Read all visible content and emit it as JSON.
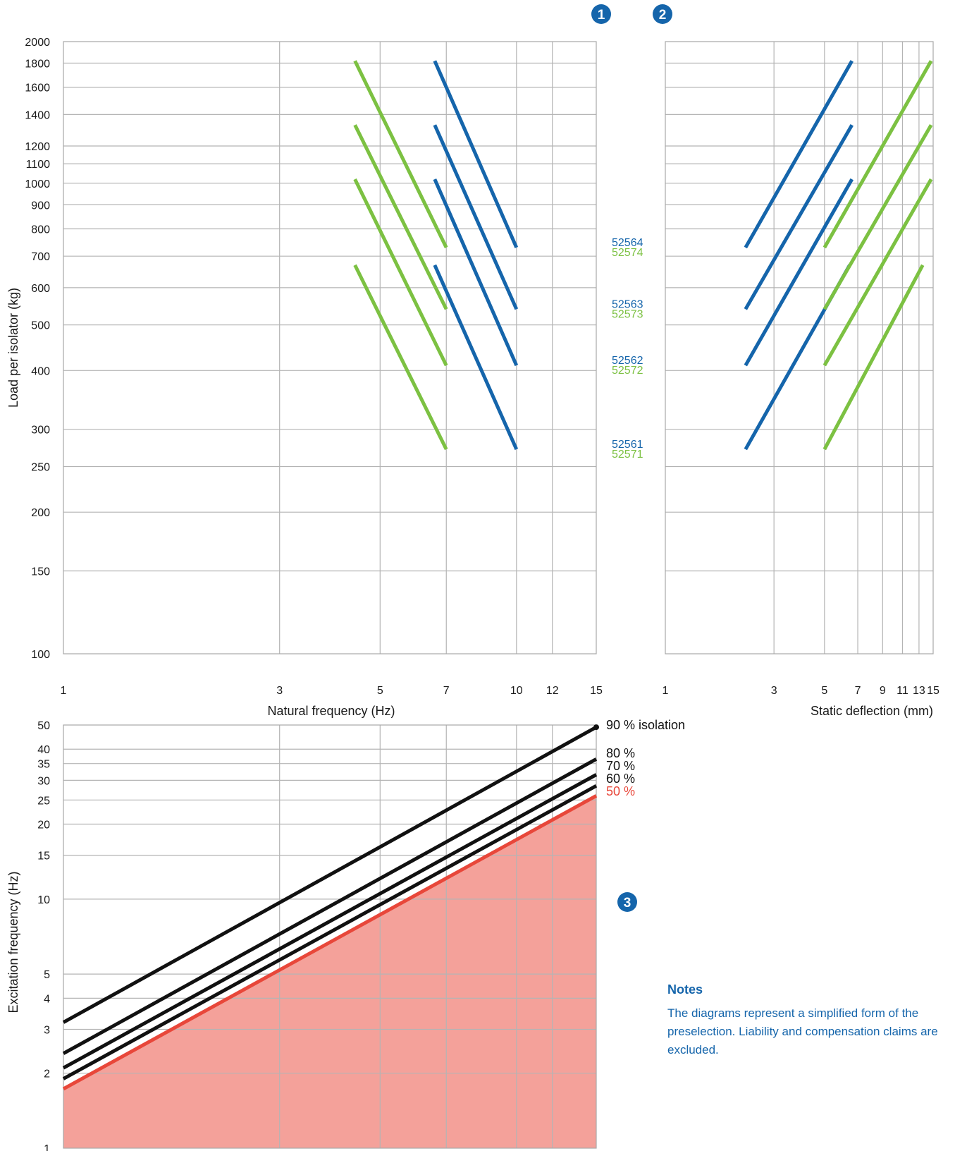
{
  "colors": {
    "blue": "#1565ab",
    "green": "#7cc142",
    "black": "#111111",
    "red": "#e8473a",
    "red_fill": "#f4a19a"
  },
  "markers": [
    "1",
    "2",
    "3"
  ],
  "notes": {
    "title": "Notes",
    "body": "The diagrams represent a simplified form of the preselection. Liability and compensation claims are excluded."
  },
  "chart_data": [
    {
      "id": "load-vs-natural-frequency",
      "marker": "1",
      "type": "line",
      "xlabel": "Natural frequency (Hz)",
      "ylabel": "Load per isolator (kg)",
      "xscale": "log",
      "yscale": "log",
      "xlim": [
        1,
        15
      ],
      "ylim": [
        100,
        2000
      ],
      "xticks": [
        1,
        3,
        5,
        7,
        10,
        12,
        15
      ],
      "yticks": [
        100,
        150,
        200,
        250,
        300,
        400,
        500,
        600,
        700,
        800,
        900,
        1000,
        1100,
        1200,
        1400,
        1600,
        1800,
        2000
      ],
      "grid_x": [
        3,
        5,
        7,
        10,
        12
      ],
      "grid_y": [
        150,
        200,
        250,
        300,
        400,
        500,
        600,
        700,
        800,
        900,
        1000,
        1100,
        1200,
        1400,
        1600,
        1800
      ],
      "series": [
        {
          "name": "52564",
          "color": "blue",
          "x": [
            6.6,
            10.0
          ],
          "y": [
            1820,
            730
          ]
        },
        {
          "name": "52563",
          "color": "blue",
          "x": [
            6.6,
            10.0
          ],
          "y": [
            1330,
            540
          ]
        },
        {
          "name": "52562",
          "color": "blue",
          "x": [
            6.6,
            10.0
          ],
          "y": [
            1020,
            410
          ]
        },
        {
          "name": "52561",
          "color": "blue",
          "x": [
            6.6,
            10.0
          ],
          "y": [
            670,
            272
          ]
        },
        {
          "name": "52574",
          "color": "green",
          "x": [
            4.4,
            7.0
          ],
          "y": [
            1820,
            730
          ]
        },
        {
          "name": "52573",
          "color": "green",
          "x": [
            4.4,
            7.0
          ],
          "y": [
            1330,
            540
          ]
        },
        {
          "name": "52572",
          "color": "green",
          "x": [
            4.4,
            7.0
          ],
          "y": [
            1020,
            410
          ]
        },
        {
          "name": "52571",
          "color": "green",
          "x": [
            4.4,
            7.0
          ],
          "y": [
            670,
            272
          ]
        }
      ]
    },
    {
      "id": "load-vs-static-deflection",
      "marker": "2",
      "type": "line",
      "xlabel": "Static deflection (mm)",
      "ylabel": "",
      "xscale": "log",
      "yscale": "log",
      "xlim": [
        1,
        15
      ],
      "ylim": [
        100,
        2000
      ],
      "xticks": [
        1,
        3,
        5,
        7,
        9,
        11,
        13,
        15
      ],
      "grid_x": [
        3,
        5,
        7,
        9,
        11,
        13
      ],
      "grid_y": [
        150,
        200,
        250,
        300,
        400,
        500,
        600,
        700,
        800,
        900,
        1000,
        1100,
        1200,
        1400,
        1600,
        1800
      ],
      "series": [
        {
          "name": "52564",
          "color": "blue",
          "x": [
            2.25,
            6.6
          ],
          "y": [
            730,
            1820
          ]
        },
        {
          "name": "52563",
          "color": "blue",
          "x": [
            2.25,
            6.6
          ],
          "y": [
            540,
            1330
          ]
        },
        {
          "name": "52562",
          "color": "blue",
          "x": [
            2.25,
            6.6
          ],
          "y": [
            410,
            1020
          ]
        },
        {
          "name": "52561",
          "color": "blue",
          "x": [
            2.25,
            6.45
          ],
          "y": [
            272,
            670
          ]
        },
        {
          "name": "52574",
          "color": "green",
          "x": [
            5.0,
            14.7
          ],
          "y": [
            730,
            1820
          ]
        },
        {
          "name": "52573",
          "color": "green",
          "x": [
            5.0,
            14.7
          ],
          "y": [
            540,
            1330
          ]
        },
        {
          "name": "52572",
          "color": "green",
          "x": [
            5.0,
            14.7
          ],
          "y": [
            410,
            1020
          ]
        },
        {
          "name": "52571",
          "color": "green",
          "x": [
            5.0,
            13.5
          ],
          "y": [
            272,
            670
          ]
        }
      ]
    },
    {
      "id": "excitation-vs-natural-frequency",
      "marker": "3",
      "type": "line",
      "xlabel": "",
      "ylabel": "Excitation frequency (Hz)",
      "xscale": "log",
      "yscale": "log",
      "xlim": [
        1,
        15
      ],
      "ylim": [
        1,
        50
      ],
      "yticks": [
        1,
        2,
        3,
        4,
        5,
        10,
        15,
        20,
        25,
        30,
        35,
        40,
        50
      ],
      "grid_x": [
        3,
        5,
        7,
        10,
        12
      ],
      "grid_y": [
        2,
        3,
        4,
        5,
        10,
        15,
        20,
        25,
        30,
        35,
        40
      ],
      "shaded_below": "50%",
      "series": [
        {
          "name": "90% isolation",
          "color": "black",
          "x": [
            1,
            15
          ],
          "y": [
            3.2,
            49
          ]
        },
        {
          "name": "80%",
          "color": "black",
          "x": [
            1,
            15
          ],
          "y": [
            2.4,
            36.5
          ]
        },
        {
          "name": "70%",
          "color": "black",
          "x": [
            1,
            15
          ],
          "y": [
            2.1,
            31.6
          ]
        },
        {
          "name": "60%",
          "color": "black",
          "x": [
            1,
            15
          ],
          "y": [
            1.9,
            28.5
          ]
        },
        {
          "name": "50%",
          "color": "red",
          "x": [
            1,
            15
          ],
          "y": [
            1.73,
            26
          ]
        }
      ]
    }
  ],
  "labels": {
    "model_pairs": [
      {
        "blue": "52564",
        "green": "52574",
        "level": 730
      },
      {
        "blue": "52563",
        "green": "52573",
        "level": 540
      },
      {
        "blue": "52562",
        "green": "52572",
        "level": 410
      },
      {
        "blue": "52561",
        "green": "52571",
        "level": 272
      }
    ],
    "isolation": [
      {
        "text": "90 % isolation",
        "color": "black"
      },
      {
        "text": "80 %",
        "color": "black"
      },
      {
        "text": "70 %",
        "color": "black"
      },
      {
        "text": "60 %",
        "color": "black"
      },
      {
        "text": "50 %",
        "color": "red"
      }
    ]
  }
}
